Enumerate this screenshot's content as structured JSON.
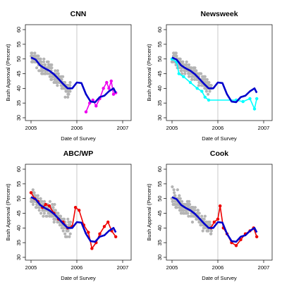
{
  "chart_data": [
    {
      "type": "scatter",
      "title": "CNN",
      "xlabel": "Date of Survey",
      "ylabel": "Bush Approval (Percent)",
      "xlim": [
        2005,
        2007
      ],
      "ylim": [
        28,
        61
      ],
      "xticks": [
        "2005",
        "2006",
        "2007"
      ],
      "yticks": [
        30,
        35,
        40,
        45,
        50,
        55,
        60
      ],
      "vline_x": 2006,
      "colors": {
        "points": "#b4b4b4",
        "trend": "#0000cc",
        "highlight": "#ee00ee",
        "vline": "#c8c8c8"
      },
      "trend": {
        "x": [
          2005.0,
          2005.1,
          2005.2,
          2005.3,
          2005.4,
          2005.5,
          2005.6,
          2005.7,
          2005.8,
          2005.9,
          2006.0,
          2006.1,
          2006.2,
          2006.3,
          2006.4,
          2006.5,
          2006.6,
          2006.7,
          2006.8,
          2006.85
        ],
        "y": [
          50.5,
          49.8,
          47.8,
          46.8,
          46.0,
          44.8,
          43.2,
          41.5,
          40.0,
          40.0,
          42.0,
          41.8,
          38.0,
          35.5,
          35.3,
          37.0,
          37.5,
          39.0,
          40.0,
          38.5
        ]
      },
      "highlight": {
        "x": [
          2006.2,
          2006.28,
          2006.35,
          2006.42,
          2006.5,
          2006.58,
          2006.65,
          2006.7,
          2006.75,
          2006.8,
          2006.85
        ],
        "y": [
          32.0,
          35.0,
          36.0,
          34.0,
          36.5,
          40.0,
          42.0,
          40.0,
          42.5,
          38.0,
          38.5
        ]
      }
    },
    {
      "type": "scatter",
      "title": "Newsweek",
      "xlabel": "Date of Survey",
      "ylabel": "Bush Approval (Percent)",
      "xlim": [
        2005,
        2007
      ],
      "ylim": [
        28,
        61
      ],
      "xticks": [
        "2005",
        "2006",
        "2007"
      ],
      "yticks": [
        30,
        35,
        40,
        45,
        50,
        55,
        60
      ],
      "vline_x": 2006,
      "colors": {
        "points": "#b4b4b4",
        "trend": "#0000cc",
        "highlight": "#00ffff",
        "vline": "#c8c8c8"
      },
      "trend": {
        "x": [
          2005.0,
          2005.1,
          2005.2,
          2005.3,
          2005.4,
          2005.5,
          2005.6,
          2005.7,
          2005.8,
          2005.9,
          2006.0,
          2006.1,
          2006.2,
          2006.3,
          2006.4,
          2006.5,
          2006.6,
          2006.7,
          2006.8,
          2006.85
        ],
        "y": [
          50.5,
          49.8,
          47.8,
          46.8,
          46.0,
          44.8,
          43.2,
          41.5,
          40.0,
          40.0,
          42.0,
          41.8,
          38.0,
          35.5,
          35.3,
          37.0,
          37.5,
          39.0,
          40.0,
          38.5
        ]
      },
      "highlight": {
        "x": [
          2005.0,
          2005.1,
          2005.15,
          2005.25,
          2005.4,
          2005.55,
          2005.65,
          2005.72,
          2005.8,
          2006.4,
          2006.55,
          2006.7,
          2006.8,
          2006.85
        ],
        "y": [
          50.0,
          49.0,
          45.0,
          44.0,
          42.0,
          40.0,
          39.0,
          37.0,
          36.0,
          36.0,
          35.5,
          36.5,
          33.0,
          36.5
        ]
      }
    },
    {
      "type": "scatter",
      "title": "ABC/WP",
      "xlabel": "Date of Survey",
      "ylabel": "Bush Approval (Percent)",
      "xlim": [
        2005,
        2007
      ],
      "ylim": [
        28,
        61
      ],
      "xticks": [
        "2005",
        "2006",
        "2007"
      ],
      "yticks": [
        30,
        35,
        40,
        45,
        50,
        55,
        60
      ],
      "vline_x": 2006,
      "colors": {
        "points": "#b4b4b4",
        "trend": "#0000cc",
        "highlight": "#ee0000",
        "vline": "#c8c8c8"
      },
      "trend": {
        "x": [
          2005.0,
          2005.1,
          2005.2,
          2005.3,
          2005.4,
          2005.5,
          2005.6,
          2005.7,
          2005.8,
          2005.9,
          2006.0,
          2006.1,
          2006.2,
          2006.3,
          2006.4,
          2006.5,
          2006.6,
          2006.7,
          2006.8,
          2006.85
        ],
        "y": [
          50.5,
          49.8,
          47.8,
          46.8,
          46.0,
          44.8,
          43.2,
          41.5,
          40.0,
          40.0,
          42.0,
          41.8,
          38.0,
          35.5,
          35.3,
          37.0,
          37.5,
          39.0,
          40.0,
          38.5
        ]
      },
      "highlight": {
        "x": [
          2005.0,
          2005.08,
          2005.15,
          2005.25,
          2005.32,
          2005.4,
          2005.5,
          2005.6,
          2005.7,
          2005.8,
          2005.9,
          2005.97,
          2006.05,
          2006.15,
          2006.25,
          2006.33,
          2006.42,
          2006.5,
          2006.6,
          2006.68,
          2006.76,
          2006.85
        ],
        "y": [
          52.0,
          50.0,
          49.0,
          47.0,
          48.0,
          47.5,
          45.0,
          43.0,
          42.0,
          40.0,
          40.5,
          47.0,
          46.0,
          41.0,
          38.5,
          33.0,
          35.0,
          38.0,
          40.5,
          42.0,
          39.0,
          37.0
        ]
      }
    },
    {
      "type": "scatter",
      "title": "Cook",
      "xlabel": "Date of Survey",
      "ylabel": "Bush Approval (Percent)",
      "xlim": [
        2005,
        2007
      ],
      "ylim": [
        28,
        61
      ],
      "xticks": [
        "2005",
        "2006",
        "2007"
      ],
      "yticks": [
        30,
        35,
        40,
        45,
        50,
        55,
        60
      ],
      "vline_x": 2006,
      "colors": {
        "points": "#b4b4b4",
        "trend": "#0000cc",
        "highlight": "#ee0000",
        "vline": "#c8c8c8"
      },
      "trend": {
        "x": [
          2005.0,
          2005.1,
          2005.2,
          2005.3,
          2005.4,
          2005.5,
          2005.6,
          2005.7,
          2005.8,
          2005.9,
          2006.0,
          2006.1,
          2006.2,
          2006.3,
          2006.4,
          2006.5,
          2006.6,
          2006.7,
          2006.8,
          2006.85
        ],
        "y": [
          50.5,
          49.8,
          47.8,
          46.8,
          46.0,
          44.8,
          43.2,
          41.5,
          40.0,
          40.0,
          42.0,
          41.8,
          38.0,
          35.5,
          35.3,
          37.0,
          37.5,
          39.0,
          40.0,
          38.5
        ]
      },
      "highlight": {
        "x": [
          2005.85,
          2005.92,
          2006.0,
          2006.05,
          2006.12,
          2006.2,
          2006.3,
          2006.4,
          2006.5,
          2006.6,
          2006.7,
          2006.78,
          2006.85
        ],
        "y": [
          40.0,
          42.0,
          43.0,
          47.5,
          40.0,
          38.0,
          35.0,
          34.0,
          36.0,
          38.0,
          39.0,
          40.0,
          37.0
        ]
      }
    }
  ]
}
